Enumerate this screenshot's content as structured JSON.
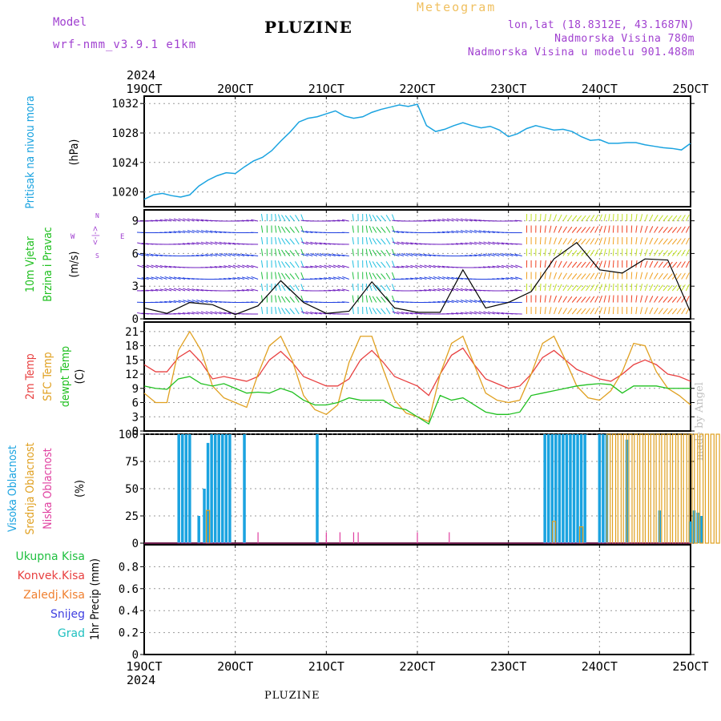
{
  "header": {
    "app_title": "Meteogram",
    "model_label": "Model",
    "model_name": "wrf-nmm_v3.9.1  e1km",
    "station": "PLUZINE",
    "lonlat": "lon,lat (18.8312E, 43.1687N)",
    "elevation": "Nadmorska Visina 780m",
    "model_elevation": "Nadmorska Visina u modelu 901.488m",
    "credit": "made by Angel",
    "footer_station": "PLUZINE"
  },
  "colors": {
    "pressure": "#1aa3e0",
    "temp2m": "#e84040",
    "sfc_temp": "#e0a020",
    "dewpoint": "#20c020",
    "high_cloud": "#1aa3e0",
    "mid_cloud": "#e0a020",
    "low_cloud": "#e040a0",
    "title_purple": "#a040d0"
  },
  "x_axis": {
    "year": "2024",
    "ticks": [
      "19OCT",
      "20OCT",
      "21OCT",
      "22OCT",
      "23OCT",
      "24OCT",
      "25OCT"
    ]
  },
  "panels": {
    "pressure": {
      "labels": [
        "Pritisak na nivou mora"
      ],
      "unit": "(hPa)"
    },
    "wind": {
      "labels": [
        "10m Vjetar",
        "Brzina i Pravac"
      ],
      "unit": "(m/s)",
      "compass": [
        "N",
        "W",
        "E",
        "S"
      ]
    },
    "temp": {
      "labels": [
        "2m Temp",
        "SFC Temp",
        "dewpt Temp"
      ],
      "unit": "(C)"
    },
    "cloud": {
      "labels": [
        "Visoka Oblacnost",
        "Srednja Oblacnost",
        "Niska Oblacnost"
      ],
      "unit": "(%)"
    },
    "precip": {
      "labels": [
        "Ukupna Kisa",
        "Konvek.Kisa",
        "Zaledj.Kisa",
        "Snijeg",
        "Grad"
      ],
      "unit": "1hr Precip (mm)"
    }
  },
  "chart_data": [
    {
      "type": "line",
      "title": "",
      "ylabel": "Pritisak na nivou mora (hPa)",
      "ylim": [
        1018,
        1033
      ],
      "yticks": [
        1020,
        1024,
        1028,
        1032
      ],
      "x_days": [
        19.0,
        19.1,
        19.2,
        19.3,
        19.4,
        19.5,
        19.6,
        19.7,
        19.8,
        19.9,
        20.0,
        20.1,
        20.2,
        20.3,
        20.4,
        20.5,
        20.6,
        20.7,
        20.8,
        20.9,
        21.0,
        21.1,
        21.2,
        21.3,
        21.4,
        21.5,
        21.6,
        21.7,
        21.8,
        21.9,
        22.0,
        22.1,
        22.2,
        22.3,
        22.4,
        22.5,
        22.6,
        22.7,
        22.8,
        22.9,
        23.0,
        23.1,
        23.2,
        23.3,
        23.4,
        23.5,
        23.6,
        23.7,
        23.8,
        23.9,
        24.0,
        24.1,
        24.2,
        24.3,
        24.4,
        24.5,
        24.6,
        24.7,
        24.8,
        24.9,
        25.0
      ],
      "series": [
        {
          "name": "Pritisak na nivou mora",
          "values": [
            1019.0,
            1019.6,
            1019.8,
            1019.5,
            1019.3,
            1019.6,
            1020.8,
            1021.6,
            1022.2,
            1022.6,
            1022.5,
            1023.4,
            1024.2,
            1024.7,
            1025.6,
            1026.9,
            1028.1,
            1029.5,
            1030.0,
            1030.2,
            1030.6,
            1031.0,
            1030.3,
            1030.0,
            1030.2,
            1030.8,
            1031.2,
            1031.5,
            1031.8,
            1031.6,
            1031.9,
            1029.0,
            1028.2,
            1028.5,
            1029.0,
            1029.4,
            1029.0,
            1028.7,
            1028.9,
            1028.4,
            1027.5,
            1027.9,
            1028.6,
            1029.0,
            1028.7,
            1028.4,
            1028.5,
            1028.2,
            1027.5,
            1027.0,
            1027.1,
            1026.6,
            1026.6,
            1026.7,
            1026.7,
            1026.4,
            1026.2,
            1026.0,
            1025.9,
            1025.7,
            1026.6
          ]
        }
      ]
    },
    {
      "type": "line",
      "title": "",
      "ylabel": "10m Vjetar Brzina i Pravac (m/s)",
      "ylim": [
        0,
        10
      ],
      "yticks": [
        0,
        3,
        6,
        9
      ],
      "x_days": [
        19.0,
        19.25,
        19.5,
        19.75,
        20.0,
        20.25,
        20.5,
        20.75,
        21.0,
        21.25,
        21.5,
        21.75,
        22.0,
        22.25,
        22.5,
        22.75,
        23.0,
        23.25,
        23.5,
        23.75,
        24.0,
        24.25,
        24.5,
        24.75,
        25.0
      ],
      "series": [
        {
          "name": "Brzina",
          "values": [
            1.0,
            0.5,
            1.5,
            1.3,
            0.4,
            1.2,
            3.5,
            1.5,
            0.5,
            0.7,
            3.4,
            1.0,
            0.6,
            0.6,
            4.5,
            1.0,
            1.5,
            2.5,
            5.5,
            7.0,
            4.5,
            4.2,
            5.5,
            5.4,
            0.6
          ]
        }
      ]
    },
    {
      "type": "line",
      "title": "",
      "ylabel": "Temp (C)",
      "ylim": [
        0,
        23
      ],
      "yticks": [
        0,
        3,
        6,
        9,
        12,
        15,
        18,
        21
      ],
      "x_days": [
        19.0,
        19.125,
        19.25,
        19.375,
        19.5,
        19.625,
        19.75,
        19.875,
        20.0,
        20.125,
        20.25,
        20.375,
        20.5,
        20.625,
        20.75,
        20.875,
        21.0,
        21.125,
        21.25,
        21.375,
        21.5,
        21.625,
        21.75,
        21.875,
        22.0,
        22.125,
        22.25,
        22.375,
        22.5,
        22.625,
        22.75,
        22.875,
        23.0,
        23.125,
        23.25,
        23.375,
        23.5,
        23.625,
        23.75,
        23.875,
        24.0,
        24.125,
        24.25,
        24.375,
        24.5,
        24.625,
        24.75,
        24.875,
        25.0
      ],
      "series": [
        {
          "name": "2m Temp",
          "values": [
            14.0,
            12.5,
            12.5,
            15.5,
            17.0,
            14.5,
            11.0,
            11.5,
            11.0,
            10.5,
            11.5,
            15.0,
            16.8,
            14.5,
            11.5,
            10.5,
            9.5,
            9.5,
            11.0,
            15.0,
            17.0,
            14.5,
            11.5,
            10.5,
            9.5,
            7.5,
            12.0,
            16.0,
            17.5,
            14.0,
            11.0,
            10.0,
            9.0,
            9.5,
            12.0,
            15.5,
            17.0,
            15.0,
            13.0,
            12.0,
            11.0,
            10.5,
            12.0,
            14.0,
            15.0,
            14.0,
            12.0,
            11.5,
            10.5
          ]
        },
        {
          "name": "SFC Temp",
          "values": [
            8.0,
            6.0,
            6.0,
            17.0,
            21.0,
            17.0,
            9.5,
            7.0,
            6.0,
            5.0,
            12.0,
            18.0,
            20.0,
            15.0,
            7.5,
            4.5,
            3.5,
            5.5,
            14.5,
            20.0,
            20.0,
            13.0,
            6.5,
            3.8,
            3.0,
            2.0,
            12.0,
            18.5,
            20.0,
            14.0,
            8.0,
            6.5,
            6.0,
            6.5,
            12.0,
            18.5,
            20.0,
            15.0,
            9.5,
            7.0,
            6.5,
            8.5,
            12.5,
            18.5,
            18.0,
            12.5,
            9.0,
            7.5,
            5.5
          ]
        },
        {
          "name": "dewpt Temp",
          "values": [
            9.5,
            9.0,
            8.8,
            11.0,
            11.5,
            10.0,
            9.5,
            10.0,
            9.0,
            8.0,
            8.2,
            8.0,
            9.0,
            8.2,
            6.5,
            5.5,
            5.5,
            6.0,
            7.0,
            6.5,
            6.5,
            6.5,
            5.0,
            4.5,
            3.0,
            1.5,
            7.5,
            6.5,
            7.0,
            5.5,
            4.0,
            3.5,
            3.5,
            4.0,
            7.5,
            8.0,
            8.5,
            9.0,
            9.5,
            9.8,
            10.0,
            9.8,
            8.0,
            9.5,
            9.5,
            9.5,
            9.0,
            9.0,
            9.0
          ]
        }
      ]
    },
    {
      "type": "bar",
      "title": "",
      "ylabel": "Oblacnost (%)",
      "ylim": [
        0,
        100
      ],
      "yticks": [
        0,
        25,
        50,
        75,
        100
      ],
      "series": [
        {
          "name": "Visoka Oblacnost",
          "x_days": [
            19.38,
            19.42,
            19.46,
            19.5,
            19.6,
            19.66,
            19.7,
            19.74,
            19.78,
            19.82,
            19.86,
            19.9,
            19.94,
            20.1,
            20.9,
            23.4,
            23.44,
            23.48,
            23.52,
            23.56,
            23.6,
            23.64,
            23.68,
            23.72,
            23.76,
            23.8,
            23.84,
            24.0,
            24.04,
            24.08,
            24.3,
            24.66,
            25.0,
            25.04,
            25.08,
            25.12
          ],
          "values": [
            100,
            100,
            100,
            100,
            25,
            50,
            92,
            100,
            100,
            100,
            100,
            100,
            100,
            100,
            100,
            100,
            100,
            100,
            100,
            100,
            100,
            100,
            100,
            100,
            100,
            100,
            100,
            100,
            100,
            100,
            95,
            30,
            20,
            30,
            28,
            25
          ]
        },
        {
          "name": "Srednja Oblacnost",
          "x_days": [
            19.7,
            23.5,
            23.8,
            24.1,
            24.16,
            24.22,
            24.28,
            24.34,
            24.4,
            24.46,
            24.52,
            24.58,
            24.64,
            24.7,
            24.76,
            24.82,
            24.88,
            24.94,
            25.0,
            25.06,
            25.12,
            25.18,
            25.24,
            25.3,
            25.36,
            25.42,
            25.48,
            25.54,
            25.6,
            25.66,
            25.72,
            25.78,
            25.84,
            25.9,
            25.96
          ],
          "values": [
            30,
            20,
            15,
            100,
            100,
            100,
            100,
            100,
            100,
            100,
            100,
            100,
            100,
            100,
            100,
            100,
            100,
            100,
            100,
            100,
            100,
            100,
            100,
            100,
            100,
            100,
            100,
            100,
            100,
            100,
            100,
            100,
            100,
            100,
            58
          ]
        },
        {
          "name": "Niska Oblacnost",
          "x_days": [
            20.25,
            21.0,
            21.15,
            21.3,
            21.35,
            22.0,
            22.35
          ],
          "values": [
            10,
            10,
            10,
            10,
            10,
            10,
            10
          ]
        }
      ]
    },
    {
      "type": "bar",
      "title": "",
      "ylabel": "1hr Precip (mm)",
      "ylim": [
        0,
        1
      ],
      "yticks": [
        0,
        0.2,
        0.4,
        0.6,
        0.8
      ],
      "series": [
        {
          "name": "Ukupna Kisa",
          "values": []
        },
        {
          "name": "Konvek.Kisa",
          "values": []
        },
        {
          "name": "Zaledj.Kisa",
          "values": []
        },
        {
          "name": "Snijeg",
          "values": []
        },
        {
          "name": "Grad",
          "values": []
        }
      ]
    }
  ]
}
